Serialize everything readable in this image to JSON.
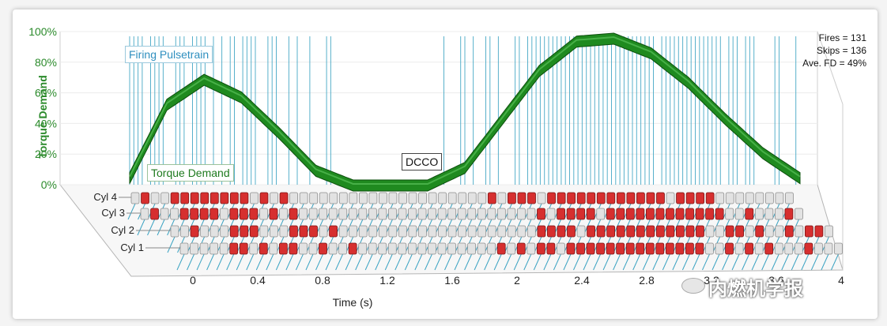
{
  "chart_data": {
    "type": "3d-pulse-train",
    "ylabel": "Torque Demand",
    "xlabel": "Time (s)",
    "y_ticks": [
      "0%",
      "20%",
      "40%",
      "60%",
      "80%",
      "100%"
    ],
    "x_ticks": [
      "0",
      "0.4",
      "0.8",
      "1.2",
      "1.6",
      "2",
      "2.4",
      "2.8",
      "3.2",
      "3.6",
      "4"
    ],
    "cylinders": [
      "Cyl 4",
      "Cyl 3",
      "Cyl 2",
      "Cyl 1"
    ],
    "annotations": {
      "pulsetrain_label": "Firing Pulsetrain",
      "torque_label": "Torque Demand",
      "dcco_label": "DCCO"
    },
    "stats": {
      "fires": "Fires = 131",
      "skips": "Skips = 136",
      "avg_fd": "Ave. FD = 49%"
    },
    "torque_curve": {
      "t": [
        0,
        0.2,
        0.4,
        0.6,
        0.8,
        1.0,
        1.2,
        1.4,
        1.6,
        1.8,
        2.0,
        2.2,
        2.4,
        2.6,
        2.8,
        3.0,
        3.2,
        3.4,
        3.6
      ],
      "demand": [
        0.05,
        0.55,
        0.72,
        0.6,
        0.36,
        0.1,
        0.0,
        0.0,
        0.0,
        0.12,
        0.45,
        0.78,
        0.98,
        1.0,
        0.9,
        0.7,
        0.45,
        0.22,
        0.05
      ]
    },
    "colors": {
      "fire": "#d62f2f",
      "skip": "#e2e2e2",
      "curve": "#1f8a1f",
      "pulse": "#3ba3c2"
    }
  },
  "watermark": {
    "text": "内燃机学报"
  }
}
